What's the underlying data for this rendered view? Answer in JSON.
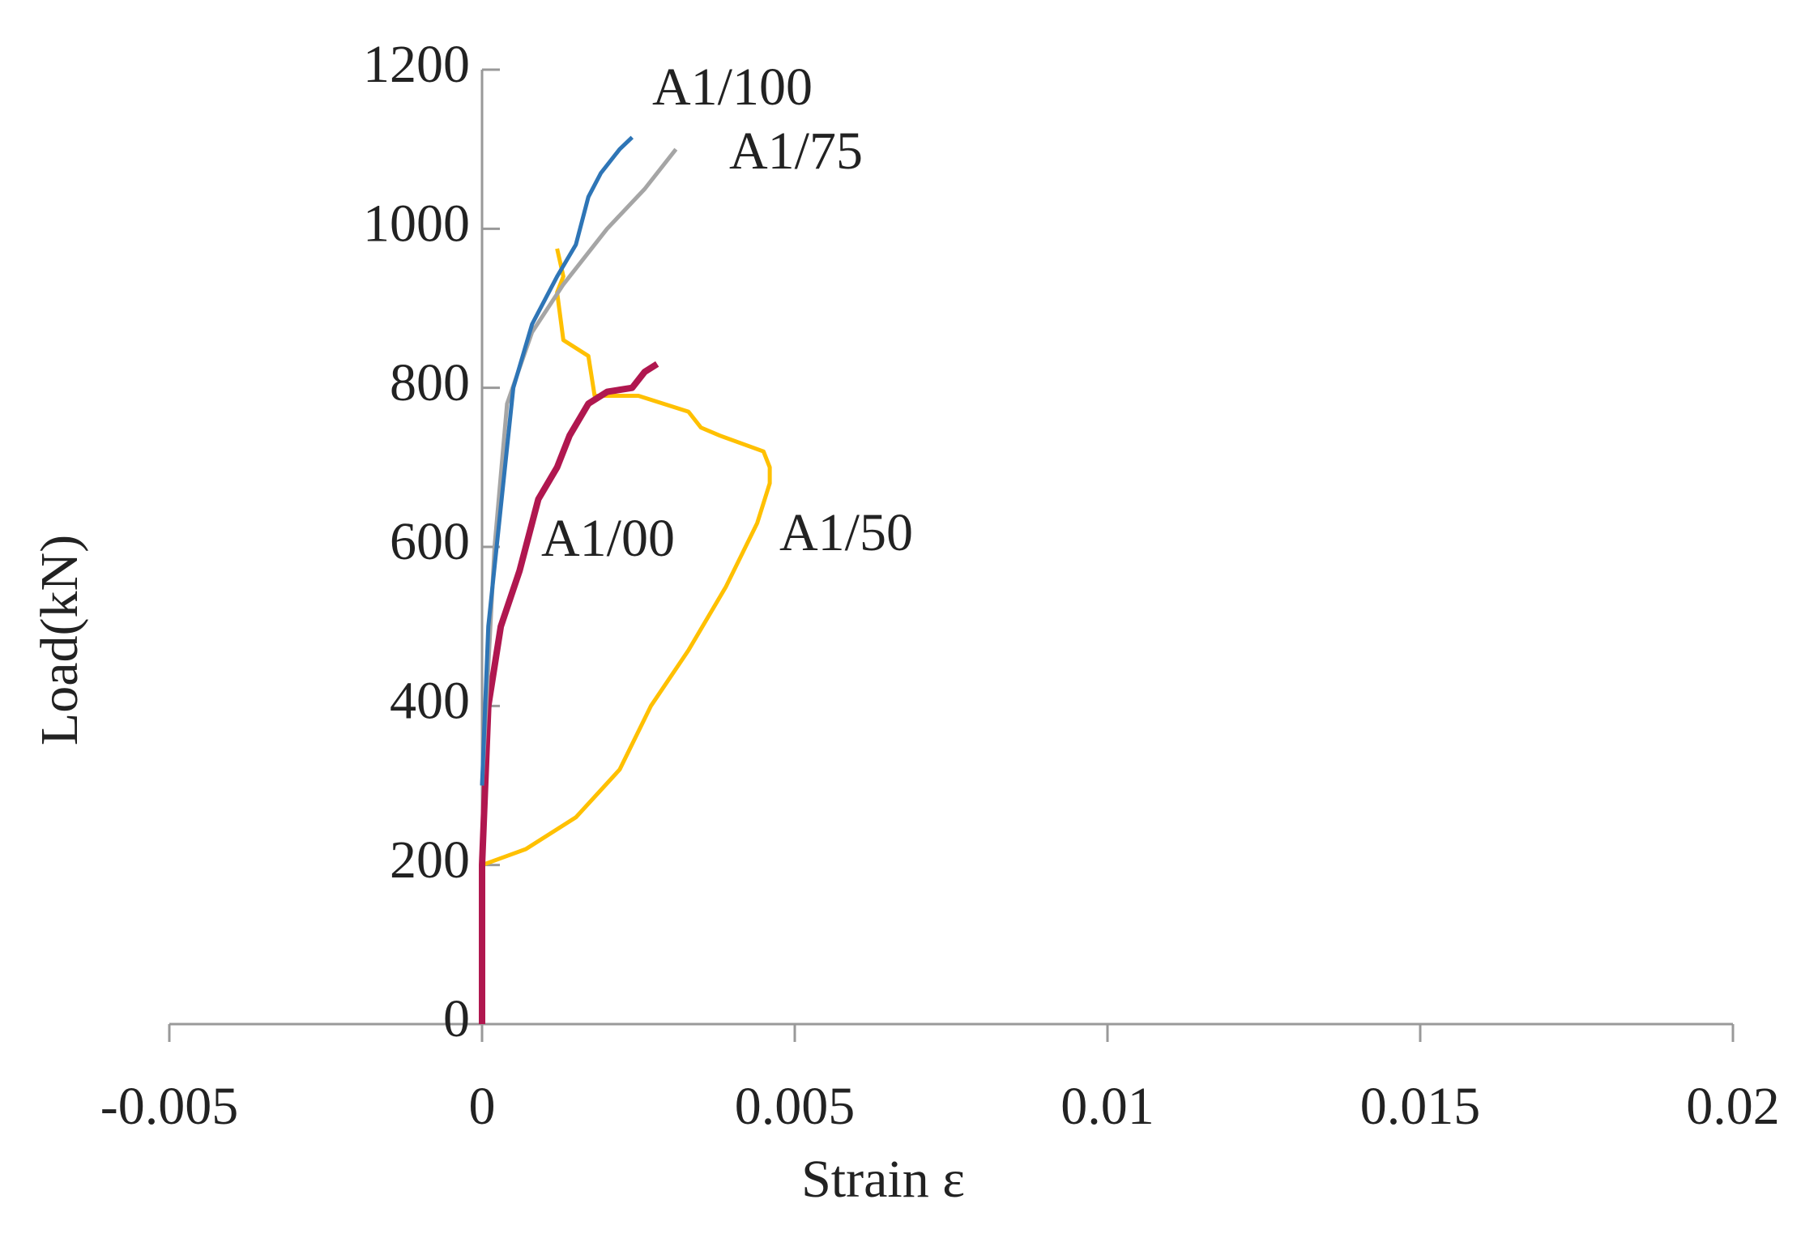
{
  "chart_data": {
    "type": "line",
    "x_label": "Strain ε",
    "y_label": "Load(kN)",
    "xlim": [
      -0.005,
      0.02
    ],
    "xticks": [
      -0.005,
      0,
      0.005,
      0.01,
      0.015,
      0.02
    ],
    "ylim": [
      0,
      1200
    ],
    "yticks": [
      0,
      200,
      400,
      600,
      800,
      1000,
      1200
    ],
    "series": [
      {
        "name": "A1/100",
        "color": "#2e75b6",
        "x": [
          0,
          0.0001,
          0.0003,
          0.0005,
          0.0008,
          0.0012,
          0.0015,
          0.0017,
          0.0019,
          0.0022,
          0.0024
        ],
        "values": [
          300,
          500,
          650,
          800,
          880,
          940,
          980,
          1040,
          1070,
          1100,
          1115
        ]
      },
      {
        "name": "A1/75",
        "color": "#a5a5a5",
        "x": [
          0,
          0.0002,
          0.0004,
          0.0008,
          0.0013,
          0.002,
          0.0026,
          0.0031
        ],
        "values": [
          300,
          600,
          780,
          870,
          930,
          1000,
          1050,
          1100
        ]
      },
      {
        "name": "A1/00",
        "color": "#b0174f",
        "x": [
          0,
          0,
          0.0001,
          0.0003,
          0.0006,
          0.0009,
          0.0012,
          0.0014,
          0.0017,
          0.002,
          0.0024,
          0.0026,
          0.0028
        ],
        "values": [
          0,
          200,
          400,
          500,
          570,
          660,
          700,
          740,
          780,
          795,
          800,
          820,
          830
        ]
      },
      {
        "name": "A1/50",
        "color": "#ffc000",
        "x": [
          0,
          0,
          0.0007,
          0.0015,
          0.0022,
          0.0027,
          0.0033,
          0.0039,
          0.0044,
          0.0046,
          0.0046,
          0.0045,
          0.0038,
          0.0035,
          0.0033,
          0.0025,
          0.0018,
          0.0017,
          0.0013,
          0.0012,
          0.0013,
          0.0012
        ],
        "values": [
          0,
          200,
          220,
          260,
          320,
          400,
          470,
          550,
          630,
          680,
          700,
          720,
          740,
          750,
          770,
          790,
          790,
          840,
          860,
          920,
          940,
          975
        ]
      }
    ]
  }
}
